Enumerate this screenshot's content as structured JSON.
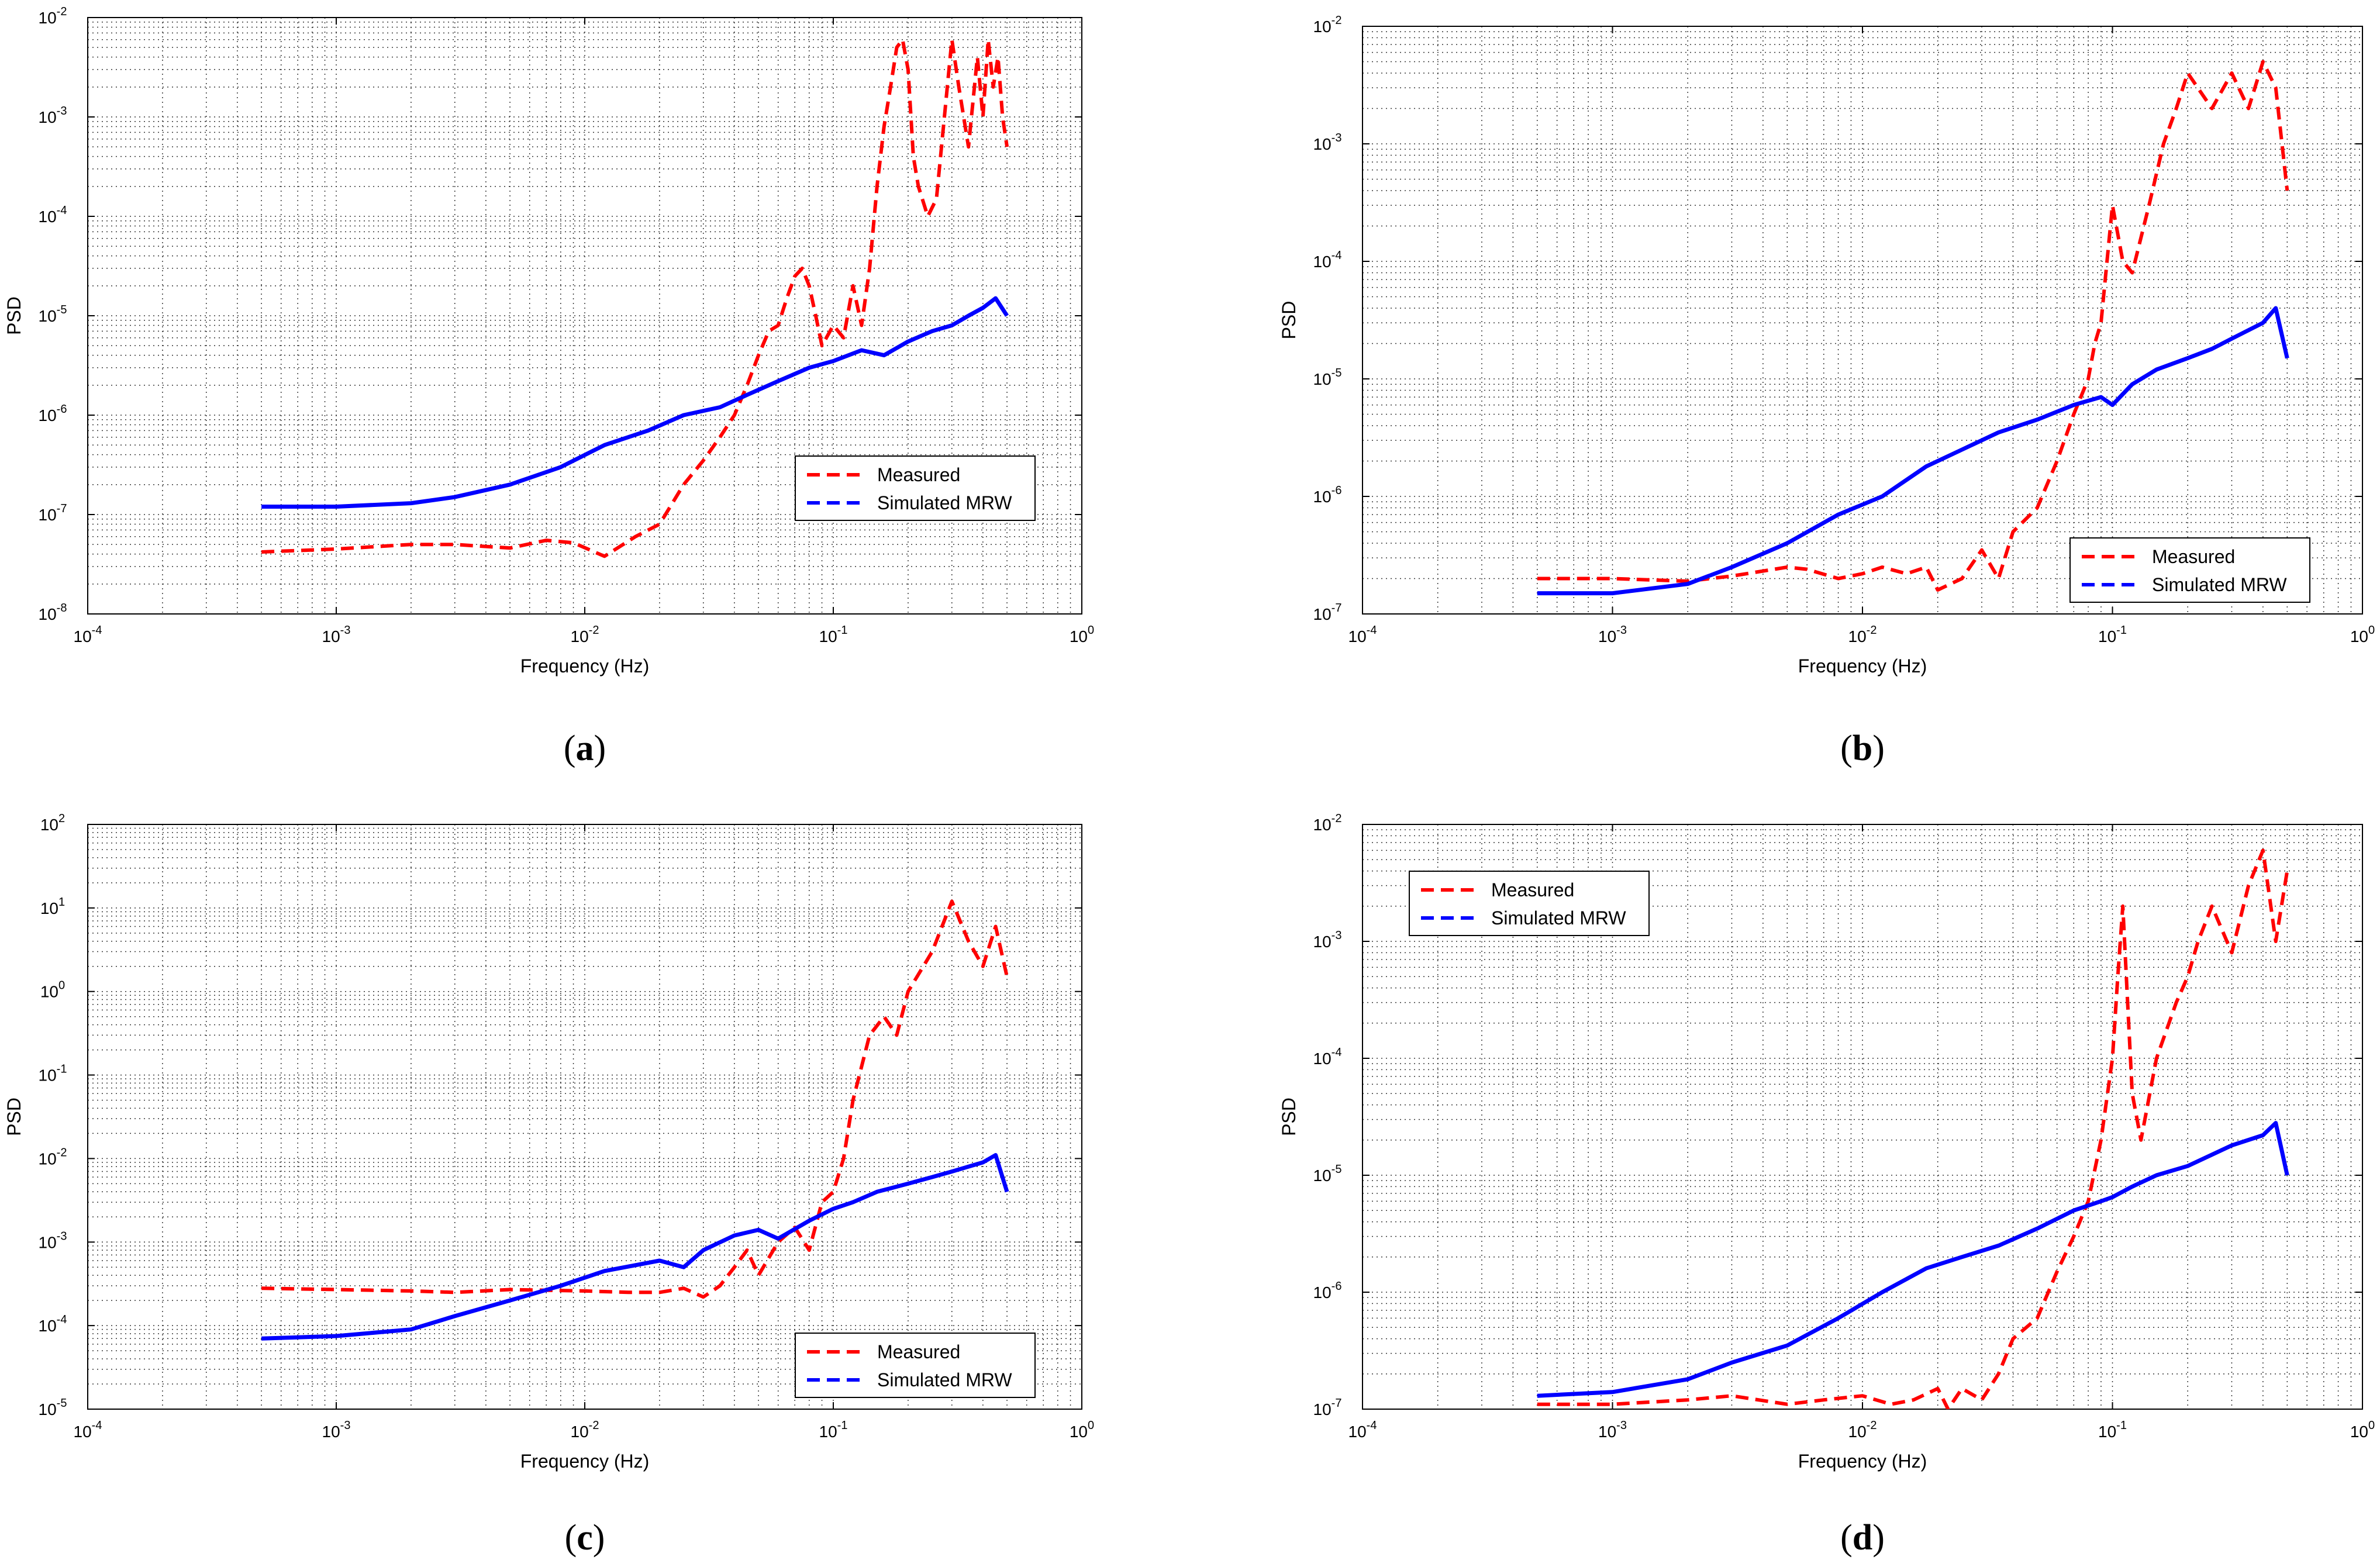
{
  "colors": {
    "measured": "#ff0000",
    "simulated": "#0000ff",
    "grid": "#333333",
    "axis": "#000000"
  },
  "chart_data": [
    {
      "panel": "a",
      "type": "line",
      "xscale": "log",
      "yscale": "log",
      "xlabel": "Frequency (Hz)",
      "ylabel": "PSD",
      "xlim_exp": [
        -4,
        0
      ],
      "ylim_exp": [
        -8,
        -2
      ],
      "x_ticks": [
        {
          "base": "10",
          "exp": "-4"
        },
        {
          "base": "10",
          "exp": "-3"
        },
        {
          "base": "10",
          "exp": "-2"
        },
        {
          "base": "10",
          "exp": "-1"
        },
        {
          "base": "10",
          "exp": "0"
        }
      ],
      "y_ticks": [
        {
          "base": "10",
          "exp": "-8"
        },
        {
          "base": "10",
          "exp": "-7"
        },
        {
          "base": "10",
          "exp": "-6"
        },
        {
          "base": "10",
          "exp": "-5"
        },
        {
          "base": "10",
          "exp": "-4"
        },
        {
          "base": "10",
          "exp": "-3"
        },
        {
          "base": "10",
          "exp": "-2"
        }
      ],
      "grid": true,
      "legend_position": "bottom-right",
      "legend": [
        "Measured",
        "Simulated MRW"
      ],
      "series": [
        {
          "name": "Measured",
          "style": "dashed",
          "x": [
            0.0005,
            0.001,
            0.002,
            0.003,
            0.005,
            0.007,
            0.009,
            0.012,
            0.016,
            0.02,
            0.025,
            0.03,
            0.035,
            0.04,
            0.045,
            0.05,
            0.055,
            0.06,
            0.065,
            0.07,
            0.075,
            0.08,
            0.085,
            0.09,
            0.1,
            0.11,
            0.12,
            0.13,
            0.14,
            0.15,
            0.16,
            0.17,
            0.18,
            0.19,
            0.2,
            0.21,
            0.22,
            0.24,
            0.26,
            0.28,
            0.3,
            0.32,
            0.35,
            0.38,
            0.4,
            0.42,
            0.44,
            0.46,
            0.48,
            0.5
          ],
          "y": [
            4.2e-08,
            4.5e-08,
            5e-08,
            5e-08,
            4.6e-08,
            5.5e-08,
            5.2e-08,
            3.8e-08,
            6e-08,
            8e-08,
            2e-07,
            3.5e-07,
            6e-07,
            1e-06,
            2e-06,
            4e-06,
            7e-06,
            8e-06,
            1.5e-05,
            2.5e-05,
            3e-05,
            2e-05,
            1e-05,
            5e-06,
            8e-06,
            6e-06,
            2e-05,
            8e-06,
            3e-05,
            0.0002,
            0.0008,
            0.002,
            0.005,
            0.006,
            0.003,
            0.0004,
            0.0002,
            0.0001,
            0.00015,
            0.001,
            0.006,
            0.002,
            0.0005,
            0.004,
            0.001,
            0.006,
            0.002,
            0.004,
            0.001,
            0.0005
          ]
        },
        {
          "name": "Simulated MRW",
          "style": "solid",
          "x": [
            0.0005,
            0.001,
            0.002,
            0.003,
            0.005,
            0.008,
            0.012,
            0.018,
            0.025,
            0.035,
            0.045,
            0.06,
            0.08,
            0.1,
            0.13,
            0.16,
            0.2,
            0.25,
            0.3,
            0.35,
            0.4,
            0.45,
            0.5
          ],
          "y": [
            1.2e-07,
            1.2e-07,
            1.3e-07,
            1.5e-07,
            2e-07,
            3e-07,
            5e-07,
            7e-07,
            1e-06,
            1.2e-06,
            1.6e-06,
            2.2e-06,
            3e-06,
            3.5e-06,
            4.5e-06,
            4e-06,
            5.5e-06,
            7e-06,
            8e-06,
            1e-05,
            1.2e-05,
            1.5e-05,
            1e-05
          ]
        }
      ]
    },
    {
      "panel": "b",
      "type": "line",
      "xscale": "log",
      "yscale": "log",
      "xlabel": "Frequency (Hz)",
      "ylabel": "PSD",
      "xlim_exp": [
        -4,
        0
      ],
      "ylim_exp": [
        -7,
        -2
      ],
      "x_ticks": [
        {
          "base": "10",
          "exp": "-4"
        },
        {
          "base": "10",
          "exp": "-3"
        },
        {
          "base": "10",
          "exp": "-2"
        },
        {
          "base": "10",
          "exp": "-1"
        },
        {
          "base": "10",
          "exp": "0"
        }
      ],
      "y_ticks": [
        {
          "base": "10",
          "exp": "-7"
        },
        {
          "base": "10",
          "exp": "-6"
        },
        {
          "base": "10",
          "exp": "-5"
        },
        {
          "base": "10",
          "exp": "-4"
        },
        {
          "base": "10",
          "exp": "-3"
        },
        {
          "base": "10",
          "exp": "-2"
        }
      ],
      "grid": true,
      "legend_position": "bottom-right",
      "legend": [
        "Measured",
        "Simulated MRW"
      ],
      "series": [
        {
          "name": "Measured",
          "style": "dashed",
          "x": [
            0.0005,
            0.001,
            0.002,
            0.003,
            0.005,
            0.006,
            0.008,
            0.01,
            0.012,
            0.015,
            0.018,
            0.02,
            0.025,
            0.03,
            0.035,
            0.04,
            0.05,
            0.06,
            0.07,
            0.08,
            0.085,
            0.09,
            0.1,
            0.11,
            0.12,
            0.14,
            0.16,
            0.18,
            0.2,
            0.25,
            0.3,
            0.35,
            0.4,
            0.45,
            0.5
          ],
          "y": [
            2e-07,
            2e-07,
            1.9e-07,
            2.1e-07,
            2.5e-07,
            2.4e-07,
            2e-07,
            2.2e-07,
            2.5e-07,
            2.2e-07,
            2.5e-07,
            1.6e-07,
            2e-07,
            3.5e-07,
            2e-07,
            5e-07,
            8e-07,
            2e-06,
            5e-06,
            1e-05,
            2e-05,
            3e-05,
            0.0003,
            0.0001,
            8e-05,
            0.0003,
            0.001,
            0.002,
            0.004,
            0.002,
            0.004,
            0.002,
            0.005,
            0.003,
            0.0004
          ]
        },
        {
          "name": "Simulated MRW",
          "style": "solid",
          "x": [
            0.0005,
            0.001,
            0.002,
            0.003,
            0.005,
            0.008,
            0.012,
            0.018,
            0.025,
            0.035,
            0.05,
            0.07,
            0.09,
            0.1,
            0.12,
            0.15,
            0.2,
            0.25,
            0.3,
            0.4,
            0.45,
            0.5
          ],
          "y": [
            1.5e-07,
            1.5e-07,
            1.8e-07,
            2.5e-07,
            4e-07,
            7e-07,
            1e-06,
            1.8e-06,
            2.5e-06,
            3.5e-06,
            4.5e-06,
            6e-06,
            7e-06,
            6e-06,
            9e-06,
            1.2e-05,
            1.5e-05,
            1.8e-05,
            2.2e-05,
            3e-05,
            4e-05,
            1.5e-05
          ]
        }
      ]
    },
    {
      "panel": "c",
      "type": "line",
      "xscale": "log",
      "yscale": "log",
      "xlabel": "Frequency (Hz)",
      "ylabel": "PSD",
      "xlim_exp": [
        -4,
        0
      ],
      "ylim_exp": [
        -5,
        2
      ],
      "x_ticks": [
        {
          "base": "10",
          "exp": "-4"
        },
        {
          "base": "10",
          "exp": "-3"
        },
        {
          "base": "10",
          "exp": "-2"
        },
        {
          "base": "10",
          "exp": "-1"
        },
        {
          "base": "10",
          "exp": "0"
        }
      ],
      "y_ticks": [
        {
          "base": "10",
          "exp": "-5"
        },
        {
          "base": "10",
          "exp": "-4"
        },
        {
          "base": "10",
          "exp": "-3"
        },
        {
          "base": "10",
          "exp": "-2"
        },
        {
          "base": "10",
          "exp": "-1"
        },
        {
          "base": "10",
          "exp": "0"
        },
        {
          "base": "10",
          "exp": "1"
        },
        {
          "base": "10",
          "exp": "2"
        }
      ],
      "grid": true,
      "legend_position": "bottom-right",
      "legend": [
        "Measured",
        "Simulated MRW"
      ],
      "series": [
        {
          "name": "Measured",
          "style": "dashed",
          "x": [
            0.0005,
            0.001,
            0.002,
            0.003,
            0.005,
            0.01,
            0.015,
            0.02,
            0.025,
            0.03,
            0.035,
            0.04,
            0.045,
            0.05,
            0.06,
            0.07,
            0.08,
            0.09,
            0.1,
            0.11,
            0.12,
            0.14,
            0.16,
            0.18,
            0.2,
            0.25,
            0.3,
            0.35,
            0.4,
            0.45,
            0.5
          ],
          "y": [
            0.00028,
            0.00027,
            0.00026,
            0.00025,
            0.00027,
            0.00026,
            0.00025,
            0.00025,
            0.00028,
            0.00022,
            0.0003,
            0.0005,
            0.0008,
            0.0004,
            0.001,
            0.0015,
            0.0008,
            0.003,
            0.004,
            0.01,
            0.05,
            0.3,
            0.5,
            0.3,
            1,
            3,
            12,
            4,
            2,
            6,
            1.5
          ]
        },
        {
          "name": "Simulated MRW",
          "style": "solid",
          "x": [
            0.0005,
            0.001,
            0.002,
            0.003,
            0.005,
            0.008,
            0.012,
            0.02,
            0.025,
            0.03,
            0.04,
            0.05,
            0.06,
            0.08,
            0.1,
            0.12,
            0.15,
            0.2,
            0.25,
            0.3,
            0.4,
            0.45,
            0.5
          ],
          "y": [
            7e-05,
            7.5e-05,
            9e-05,
            0.00013,
            0.0002,
            0.0003,
            0.00045,
            0.0006,
            0.0005,
            0.0008,
            0.0012,
            0.0014,
            0.0011,
            0.0018,
            0.0025,
            0.003,
            0.004,
            0.005,
            0.006,
            0.007,
            0.009,
            0.011,
            0.004
          ]
        }
      ]
    },
    {
      "panel": "d",
      "type": "line",
      "xscale": "log",
      "yscale": "log",
      "xlabel": "Frequency (Hz)",
      "ylabel": "PSD",
      "xlim_exp": [
        -4,
        0
      ],
      "ylim_exp": [
        -7,
        -2
      ],
      "x_ticks": [
        {
          "base": "10",
          "exp": "-4"
        },
        {
          "base": "10",
          "exp": "-3"
        },
        {
          "base": "10",
          "exp": "-2"
        },
        {
          "base": "10",
          "exp": "-1"
        },
        {
          "base": "10",
          "exp": "0"
        }
      ],
      "y_ticks": [
        {
          "base": "10",
          "exp": "-7"
        },
        {
          "base": "10",
          "exp": "-6"
        },
        {
          "base": "10",
          "exp": "-5"
        },
        {
          "base": "10",
          "exp": "-4"
        },
        {
          "base": "10",
          "exp": "-3"
        },
        {
          "base": "10",
          "exp": "-2"
        }
      ],
      "grid": true,
      "legend_position": "top-left",
      "legend": [
        "Measured",
        "Simulated MRW"
      ],
      "series": [
        {
          "name": "Measured",
          "style": "dashed",
          "x": [
            0.0005,
            0.001,
            0.002,
            0.003,
            0.005,
            0.007,
            0.01,
            0.013,
            0.016,
            0.02,
            0.022,
            0.025,
            0.03,
            0.035,
            0.04,
            0.05,
            0.06,
            0.07,
            0.08,
            0.09,
            0.1,
            0.105,
            0.11,
            0.115,
            0.12,
            0.13,
            0.15,
            0.18,
            0.2,
            0.22,
            0.25,
            0.3,
            0.35,
            0.4,
            0.45,
            0.5
          ],
          "y": [
            1.1e-07,
            1.1e-07,
            1.2e-07,
            1.3e-07,
            1.1e-07,
            1.2e-07,
            1.3e-07,
            1.1e-07,
            1.2e-07,
            1.5e-07,
            1e-07,
            1.5e-07,
            1.2e-07,
            2e-07,
            4e-07,
            6e-07,
            1.5e-06,
            3e-06,
            6e-06,
            2e-05,
            0.0001,
            0.0005,
            0.002,
            0.0003,
            5e-05,
            2e-05,
            0.0001,
            0.0003,
            0.0005,
            0.001,
            0.002,
            0.0008,
            0.003,
            0.006,
            0.001,
            0.004
          ]
        },
        {
          "name": "Simulated MRW",
          "style": "solid",
          "x": [
            0.0005,
            0.001,
            0.002,
            0.003,
            0.005,
            0.008,
            0.012,
            0.018,
            0.025,
            0.035,
            0.05,
            0.07,
            0.09,
            0.1,
            0.12,
            0.15,
            0.2,
            0.25,
            0.3,
            0.4,
            0.45,
            0.5
          ],
          "y": [
            1.3e-07,
            1.4e-07,
            1.8e-07,
            2.5e-07,
            3.5e-07,
            6e-07,
            1e-06,
            1.6e-06,
            2e-06,
            2.5e-06,
            3.5e-06,
            5e-06,
            6e-06,
            6.5e-06,
            8e-06,
            1e-05,
            1.2e-05,
            1.5e-05,
            1.8e-05,
            2.2e-05,
            2.8e-05,
            1e-05
          ]
        }
      ]
    }
  ],
  "panel_labels": [
    {
      "open": "(",
      "letter": "a",
      "close": ")"
    },
    {
      "open": "(",
      "letter": "b",
      "close": ")"
    },
    {
      "open": "(",
      "letter": "c",
      "close": ")"
    },
    {
      "open": "(",
      "letter": "d",
      "close": ")"
    }
  ]
}
